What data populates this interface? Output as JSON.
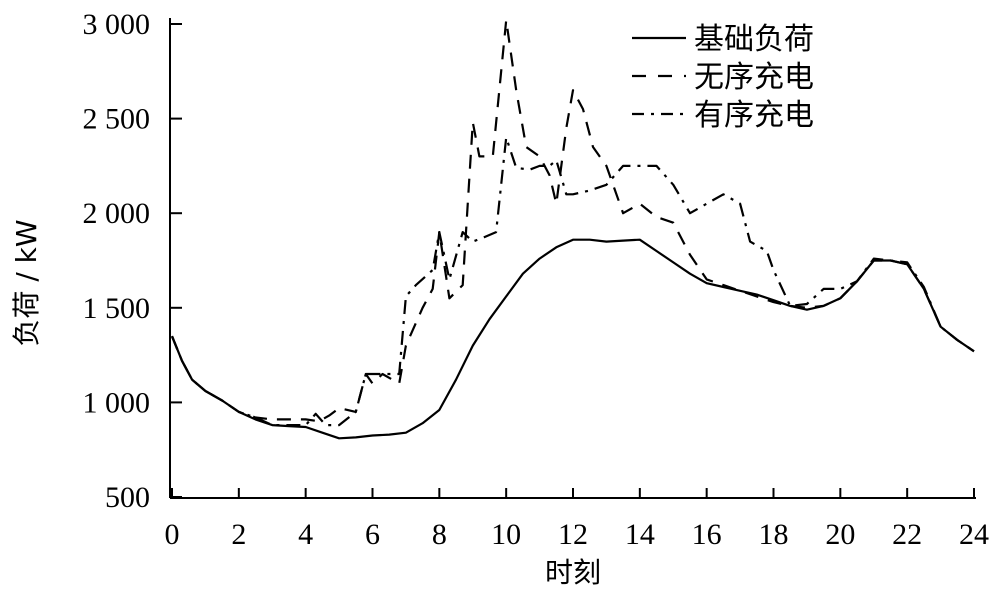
{
  "chart_data": {
    "type": "line",
    "xlabel": "时刻",
    "ylabel": "负荷 / kW",
    "xlim": [
      0,
      24
    ],
    "ylim": [
      500,
      3000
    ],
    "xticks": [
      0,
      2,
      4,
      6,
      8,
      10,
      12,
      14,
      16,
      18,
      20,
      22,
      24
    ],
    "yticks": [
      500,
      1000,
      1500,
      2000,
      2500,
      3000
    ],
    "ytick_labels": [
      "500",
      "1 000",
      "1 500",
      "2 000",
      "2 500",
      "3 000"
    ],
    "grid": false,
    "legend_position": "top-right",
    "series": [
      {
        "name": "基础负荷",
        "style": "solid",
        "x": [
          0,
          0.3,
          0.6,
          1,
          1.5,
          2,
          2.5,
          3,
          3.5,
          4,
          4.5,
          5,
          5.5,
          6,
          6.5,
          7,
          7.5,
          8,
          8.5,
          9,
          9.5,
          10,
          10.5,
          11,
          11.5,
          12,
          12.5,
          13,
          13.5,
          14,
          14.5,
          15,
          15.5,
          16,
          16.5,
          17,
          17.5,
          18,
          18.5,
          19,
          19.5,
          20,
          20.5,
          21,
          21.5,
          22,
          22.5,
          23,
          23.5,
          24
        ],
        "values": [
          1350,
          1220,
          1120,
          1060,
          1010,
          950,
          910,
          880,
          875,
          870,
          840,
          810,
          815,
          825,
          830,
          840,
          890,
          960,
          1120,
          1300,
          1440,
          1560,
          1680,
          1760,
          1820,
          1860,
          1860,
          1850,
          1855,
          1860,
          1800,
          1740,
          1680,
          1630,
          1610,
          1590,
          1570,
          1540,
          1510,
          1490,
          1510,
          1550,
          1640,
          1750,
          1750,
          1730,
          1600,
          1400,
          1330,
          1270
        ]
      },
      {
        "name": "无序充电",
        "style": "dashed",
        "x": [
          0,
          0.3,
          0.6,
          1,
          1.5,
          2,
          2.5,
          3,
          3.5,
          4,
          4.4,
          4.7,
          5,
          5.5,
          5.8,
          6,
          6.3,
          6.8,
          7,
          7.5,
          7.8,
          8,
          8.3,
          8.7,
          9,
          9.2,
          9.6,
          10,
          10.3,
          10.6,
          11,
          11.3,
          11.5,
          11.8,
          12,
          12.3,
          12.6,
          13,
          13.5,
          14,
          14.5,
          15,
          15.5,
          16,
          16.5,
          17,
          17.5,
          18,
          18.5,
          19,
          19.5,
          20,
          20.5,
          21,
          21.5,
          22,
          22.5,
          23,
          23.5,
          24
        ],
        "values": [
          1350,
          1220,
          1120,
          1060,
          1010,
          950,
          920,
          910,
          910,
          910,
          900,
          930,
          970,
          950,
          1150,
          1100,
          1150,
          1100,
          1300,
          1500,
          1600,
          1900,
          1550,
          1620,
          2480,
          2300,
          2300,
          3020,
          2650,
          2350,
          2300,
          2200,
          2050,
          2450,
          2650,
          2550,
          2350,
          2250,
          2000,
          2050,
          1980,
          1950,
          1780,
          1650,
          1620,
          1590,
          1560,
          1530,
          1510,
          1500,
          1510,
          1550,
          1640,
          1750,
          1750,
          1730,
          1600,
          1400,
          1330,
          1270
        ]
      },
      {
        "name": "有序充电",
        "style": "dashdot",
        "x": [
          0,
          0.3,
          0.6,
          1,
          1.5,
          2,
          2.5,
          3,
          3.5,
          4,
          4.3,
          4.6,
          5,
          5.5,
          5.8,
          6,
          6.3,
          6.8,
          7,
          7.3,
          7.8,
          8,
          8.3,
          8.7,
          9,
          9.3,
          9.7,
          10,
          10.3,
          10.7,
          11,
          11.3,
          11.5,
          11.8,
          12,
          12.5,
          13,
          13.5,
          14,
          14.5,
          15,
          15.5,
          16,
          16.5,
          17,
          17.3,
          17.8,
          18,
          18.5,
          19,
          19.5,
          20,
          20.5,
          21,
          21.5,
          22,
          22.5,
          23,
          23.5,
          24
        ],
        "values": [
          1350,
          1220,
          1120,
          1060,
          1010,
          950,
          920,
          880,
          880,
          880,
          940,
          880,
          880,
          950,
          1150,
          1150,
          1150,
          1150,
          1560,
          1620,
          1700,
          1900,
          1650,
          1900,
          1850,
          1870,
          1900,
          2400,
          2240,
          2230,
          2250,
          2250,
          2280,
          2100,
          2100,
          2120,
          2150,
          2250,
          2250,
          2250,
          2150,
          2000,
          2050,
          2100,
          2050,
          1850,
          1800,
          1700,
          1510,
          1520,
          1600,
          1600,
          1640,
          1760,
          1750,
          1740,
          1610,
          1400,
          1330,
          1270
        ]
      }
    ]
  }
}
